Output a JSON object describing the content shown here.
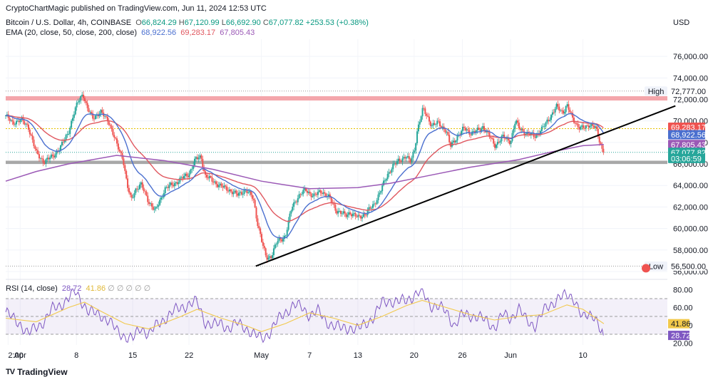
{
  "header": {
    "publisher_line": "CryptoChartMagic published on TradingView.com, Jun 11, 2024 12:53 UTC",
    "symbol": "Bitcoin / U.S. Dollar, 4h, COINBASE",
    "ohlc": [
      {
        "label": "O",
        "value": "66,824.29"
      },
      {
        "label": "H",
        "value": "67,120.99"
      },
      {
        "label": "L",
        "value": "66,692.90"
      },
      {
        "label": "C",
        "value": "67,077.82"
      }
    ],
    "change": "+253.53 (+0.38%)",
    "ema_label": "EMA (20, close, 50, close, 200, close)",
    "ema_values": [
      "68,922.56",
      "69,283.17",
      "67,805.43"
    ],
    "currency": "USD"
  },
  "colors": {
    "ema20": "#4a6fcf",
    "ema50": "#e0575f",
    "ema200": "#9b59b6",
    "up": "#26a69a",
    "down": "#ef5350",
    "rsi": "#7e57c2",
    "rsi_ma": "#f2c94c",
    "resistance": "#f4a6ab",
    "support": "#9e9e9e"
  },
  "chart_data": {
    "type": "candlestick",
    "title": "Bitcoin / U.S. Dollar, 4h, COINBASE",
    "price_axis": {
      "ticks": [
        56000,
        58000,
        60000,
        62000,
        64000,
        66000,
        68000,
        70000,
        72000,
        74000,
        76000
      ],
      "tick_labels": [
        "56,000.00",
        "58,000.00",
        "60,000.00",
        "62,000.00",
        "64,000.00",
        "66,000.00",
        "68,000.00",
        "70,000.00",
        "72,000.00",
        "74,000.00",
        "76,000.00"
      ],
      "range": [
        55400,
        77600
      ]
    },
    "x_axis": {
      "labels": [
        "2:00",
        "Apr",
        "8",
        "15",
        "22",
        "May",
        "7",
        "13",
        "20",
        "26",
        "Jun",
        "10"
      ],
      "label_days": [
        -1.5,
        0,
        7,
        14,
        21,
        30,
        36,
        42,
        49,
        55,
        61,
        70
      ],
      "range_days": [
        -1.8,
        80.5
      ]
    },
    "price_path": [
      [
        -1.8,
        70500
      ],
      [
        -1,
        69800
      ],
      [
        0,
        70100
      ],
      [
        1,
        69500
      ],
      [
        2,
        67000
      ],
      [
        3,
        66200
      ],
      [
        4,
        66700
      ],
      [
        5,
        67500
      ],
      [
        6,
        69000
      ],
      [
        6.7,
        70700
      ],
      [
        7.2,
        71800
      ],
      [
        7.8,
        72600
      ],
      [
        8.3,
        71200
      ],
      [
        9,
        70300
      ],
      [
        10,
        70800
      ],
      [
        11,
        70000
      ],
      [
        12,
        67800
      ],
      [
        12.8,
        66500
      ],
      [
        13.3,
        64000
      ],
      [
        13.8,
        62600
      ],
      [
        14.3,
        63600
      ],
      [
        15,
        64100
      ],
      [
        16,
        62500
      ],
      [
        16.8,
        61600
      ],
      [
        17.5,
        62800
      ],
      [
        18,
        63700
      ],
      [
        19,
        64100
      ],
      [
        20,
        64600
      ],
      [
        21,
        65100
      ],
      [
        21.8,
        66400
      ],
      [
        22.5,
        66700
      ],
      [
        23,
        64900
      ],
      [
        24,
        64400
      ],
      [
        25,
        63900
      ],
      [
        26,
        63600
      ],
      [
        27,
        63100
      ],
      [
        28,
        63600
      ],
      [
        29,
        62800
      ],
      [
        29.5,
        60600
      ],
      [
        30.1,
        58600
      ],
      [
        30.6,
        57300
      ],
      [
        31.2,
        57400
      ],
      [
        32,
        58800
      ],
      [
        33,
        59300
      ],
      [
        33.8,
        62000
      ],
      [
        34.5,
        62900
      ],
      [
        35.5,
        63600
      ],
      [
        36.5,
        63000
      ],
      [
        37.5,
        63500
      ],
      [
        38.5,
        62800
      ],
      [
        39.3,
        61700
      ],
      [
        40,
        61400
      ],
      [
        40.5,
        61200
      ],
      [
        41,
        61500
      ],
      [
        42,
        61000
      ],
      [
        43,
        61400
      ],
      [
        44,
        62200
      ],
      [
        45,
        63800
      ],
      [
        45.7,
        65000
      ],
      [
        46.3,
        65800
      ],
      [
        47,
        66200
      ],
      [
        48,
        66800
      ],
      [
        48.5,
        66100
      ],
      [
        49,
        67100
      ],
      [
        49.4,
        69200
      ],
      [
        50.1,
        71100
      ],
      [
        50.7,
        70300
      ],
      [
        51.2,
        69600
      ],
      [
        52,
        69800
      ],
      [
        53,
        69100
      ],
      [
        53.5,
        67600
      ],
      [
        54.4,
        68600
      ],
      [
        55.2,
        69300
      ],
      [
        56,
        68900
      ],
      [
        57,
        69100
      ],
      [
        57.6,
        69500
      ],
      [
        58.5,
        68400
      ],
      [
        59,
        67700
      ],
      [
        60,
        68500
      ],
      [
        61,
        68100
      ],
      [
        61.6,
        70000
      ],
      [
        62,
        69400
      ],
      [
        63,
        68800
      ],
      [
        64,
        68600
      ],
      [
        65,
        69300
      ],
      [
        66,
        70500
      ],
      [
        66.7,
        71300
      ],
      [
        67.5,
        70800
      ],
      [
        68,
        71500
      ],
      [
        68.7,
        70200
      ],
      [
        69.2,
        69700
      ],
      [
        69.6,
        69400
      ],
      [
        70.3,
        69300
      ],
      [
        70.8,
        69700
      ],
      [
        71.3,
        69600
      ],
      [
        71.6,
        69300
      ],
      [
        72,
        68200
      ],
      [
        72.3,
        67500
      ],
      [
        72.6,
        67077.82
      ]
    ],
    "ema": [
      {
        "name": "EMA 20",
        "value": 68922.56,
        "color": "#4a6fcf"
      },
      {
        "name": "EMA 50",
        "value": 69283.17,
        "color": "#e0575f"
      },
      {
        "name": "EMA 200",
        "value": 67805.43,
        "color": "#9b59b6"
      }
    ],
    "ema200_path": [
      [
        -1.8,
        64400
      ],
      [
        2,
        65300
      ],
      [
        6,
        66000
      ],
      [
        12,
        66800
      ],
      [
        18,
        66300
      ],
      [
        24,
        65500
      ],
      [
        30,
        64400
      ],
      [
        36,
        63700
      ],
      [
        42,
        63800
      ],
      [
        46,
        64200
      ],
      [
        50,
        64800
      ],
      [
        56,
        65700
      ],
      [
        62,
        66400
      ],
      [
        66,
        67100
      ],
      [
        70,
        67700
      ],
      [
        72.6,
        67805.43
      ]
    ],
    "resistance_zone": [
      71900,
      72300
    ],
    "support_zone": [
      66000,
      66300
    ],
    "trendline": {
      "start": [
        29.3,
        56500
      ],
      "end": [
        81.5,
        71400
      ]
    },
    "dotted_levels": [
      72777,
      69283.17,
      67077.82
    ],
    "right_labels": [
      {
        "text": "High",
        "value": "72,777.00",
        "price": 72777,
        "kind": "plain"
      },
      {
        "text": "",
        "value": "69,283.17",
        "price": 69283.17,
        "kind": "ema50"
      },
      {
        "text": "",
        "value": "68,922.56",
        "price": 68922.56,
        "kind": "ema20"
      },
      {
        "text": "",
        "value": "67,805.43",
        "price": 67805.43,
        "kind": "ema200"
      },
      {
        "text": "",
        "value": "67,077.82",
        "price": 67077.82,
        "kind": "last"
      },
      {
        "text": "",
        "value": "03:06:59",
        "price": 66640,
        "kind": "countdown"
      },
      {
        "text": "Low",
        "value": "56,500.00",
        "price": 56500,
        "kind": "plain"
      }
    ],
    "rsi": {
      "label": "RSI (14, close)",
      "value": 28.72,
      "ma_value": 41.86,
      "axis_ticks": [
        20,
        40,
        60,
        80
      ],
      "axis_tick_labels": [
        "20.00",
        "40.00",
        "60.00",
        "80.00"
      ],
      "bands": [
        30,
        50,
        70
      ],
      "range": [
        18,
        82
      ],
      "path": [
        [
          -1.8,
          55
        ],
        [
          -1,
          48
        ],
        [
          0,
          42
        ],
        [
          1,
          30
        ],
        [
          2,
          38
        ],
        [
          3,
          45
        ],
        [
          4,
          58
        ],
        [
          5,
          63
        ],
        [
          6,
          70
        ],
        [
          6.8,
          78
        ],
        [
          7.5,
          70
        ],
        [
          8.5,
          55
        ],
        [
          10,
          52
        ],
        [
          11,
          45
        ],
        [
          12,
          34
        ],
        [
          13,
          28
        ],
        [
          14,
          24
        ],
        [
          15,
          38
        ],
        [
          16,
          30
        ],
        [
          17,
          40
        ],
        [
          18,
          48
        ],
        [
          19,
          55
        ],
        [
          20,
          60
        ],
        [
          21,
          64
        ],
        [
          22,
          66
        ],
        [
          23,
          44
        ],
        [
          24,
          40
        ],
        [
          25,
          42
        ],
        [
          26,
          37
        ],
        [
          27,
          42
        ],
        [
          28,
          38
        ],
        [
          29,
          30
        ],
        [
          30,
          25
        ],
        [
          31,
          32
        ],
        [
          32,
          45
        ],
        [
          33,
          55
        ],
        [
          34,
          63
        ],
        [
          35,
          60
        ],
        [
          36,
          52
        ],
        [
          37,
          56
        ],
        [
          38,
          45
        ],
        [
          39,
          40
        ],
        [
          40,
          36
        ],
        [
          41,
          38
        ],
        [
          42,
          35
        ],
        [
          43,
          42
        ],
        [
          44,
          50
        ],
        [
          45,
          65
        ],
        [
          46,
          68
        ],
        [
          47,
          66
        ],
        [
          48,
          68
        ],
        [
          49,
          74
        ],
        [
          50,
          78
        ],
        [
          51,
          63
        ],
        [
          52,
          61
        ],
        [
          53,
          55
        ],
        [
          54,
          40
        ],
        [
          55,
          52
        ],
        [
          56,
          51
        ],
        [
          57,
          50
        ],
        [
          58,
          44
        ],
        [
          59,
          38
        ],
        [
          60,
          52
        ],
        [
          61,
          47
        ],
        [
          62,
          60
        ],
        [
          63,
          44
        ],
        [
          64,
          40
        ],
        [
          65,
          55
        ],
        [
          66,
          62
        ],
        [
          67,
          73
        ],
        [
          68,
          72
        ],
        [
          69,
          70
        ],
        [
          70,
          48
        ],
        [
          70.8,
          50
        ],
        [
          71.5,
          52
        ],
        [
          72,
          40
        ],
        [
          72.6,
          28.72
        ]
      ],
      "ma_path": [
        [
          -1.8,
          48
        ],
        [
          2,
          44
        ],
        [
          6,
          60
        ],
        [
          8,
          66
        ],
        [
          10,
          56
        ],
        [
          13,
          42
        ],
        [
          16,
          36
        ],
        [
          20,
          50
        ],
        [
          22,
          58
        ],
        [
          25,
          48
        ],
        [
          28,
          40
        ],
        [
          30,
          33
        ],
        [
          33,
          42
        ],
        [
          36,
          54
        ],
        [
          39,
          48
        ],
        [
          42,
          40
        ],
        [
          45,
          50
        ],
        [
          48,
          62
        ],
        [
          50,
          68
        ],
        [
          53,
          60
        ],
        [
          56,
          52
        ],
        [
          59,
          46
        ],
        [
          62,
          50
        ],
        [
          65,
          52
        ],
        [
          68,
          63
        ],
        [
          70,
          58
        ],
        [
          72.6,
          41.86
        ]
      ]
    },
    "current_candle": {
      "open": 66824.29,
      "high": 67120.99,
      "low": 66692.9,
      "close": 67077.82
    }
  },
  "branding": {
    "logo_text": "TV",
    "name": "TradingView"
  }
}
